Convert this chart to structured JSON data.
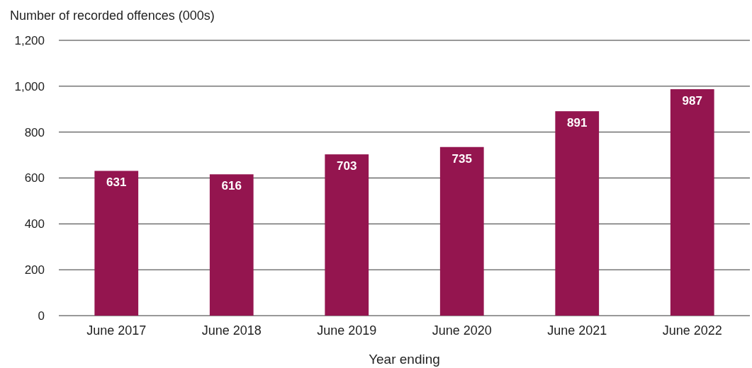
{
  "chart_data": {
    "type": "bar",
    "ylabel": "Number of recorded offences (000s)",
    "xlabel": "Year ending",
    "categories": [
      "June 2017",
      "June 2018",
      "June 2019",
      "June 2020",
      "June 2021",
      "June 2022"
    ],
    "values": [
      631,
      616,
      703,
      735,
      891,
      987
    ],
    "color": "#94154f",
    "ylim": [
      0,
      1200
    ],
    "yticks": [
      0,
      200,
      400,
      600,
      800,
      {
        "value": 1000,
        "label": "1,000"
      },
      {
        "value": 1200,
        "label": "1,200"
      }
    ],
    "grid": "y",
    "data_labels": true
  }
}
